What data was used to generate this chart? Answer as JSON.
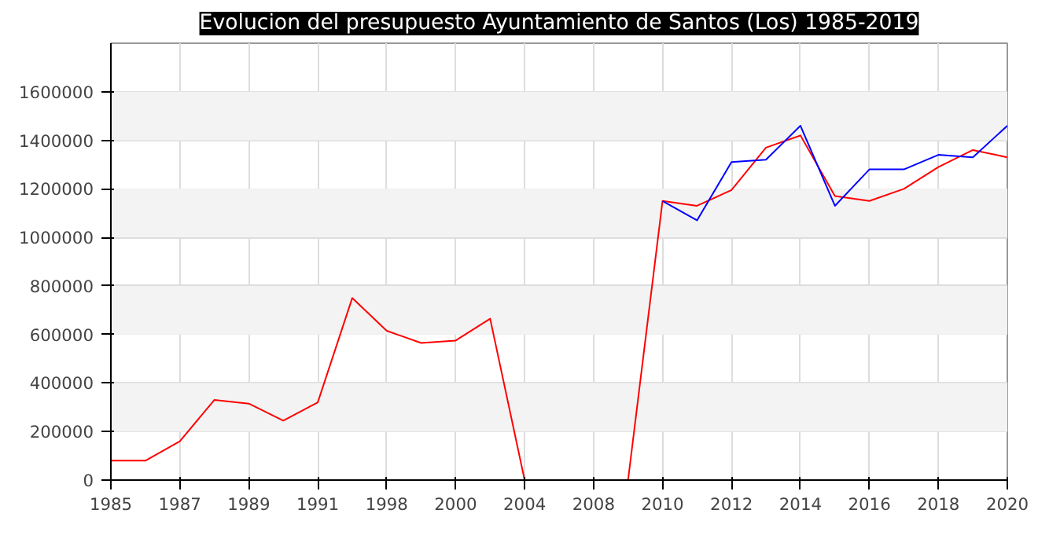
{
  "chart_data": {
    "type": "line",
    "title": "Evolucion del presupuesto Ayuntamiento de Santos (Los) 1985-2019",
    "categories": [
      "1985",
      null,
      "1987",
      null,
      "1989",
      null,
      "1991",
      null,
      "1998",
      null,
      "2000",
      null,
      "2004",
      null,
      "2008",
      null,
      "2010",
      null,
      "2012",
      null,
      "2014",
      null,
      "2016",
      null,
      "2018",
      null,
      "2020"
    ],
    "series": [
      {
        "color": "#ff0000",
        "values": [
          80000,
          80000,
          160000,
          330000,
          315000,
          245000,
          320000,
          750000,
          615000,
          565000,
          575000,
          665000,
          0,
          null,
          null,
          0,
          1150000,
          1130000,
          1195000,
          1370000,
          1420000,
          1170000,
          1150000,
          1200000,
          1290000,
          1360000,
          1330000
        ]
      },
      {
        "color": "#0000ff",
        "values": [
          null,
          null,
          null,
          null,
          null,
          null,
          null,
          null,
          null,
          null,
          null,
          null,
          null,
          null,
          null,
          null,
          1150000,
          1070000,
          1310000,
          1320000,
          1460000,
          1130000,
          1280000,
          1280000,
          1340000,
          1330000,
          1460000
        ]
      }
    ],
    "ylim": [
      0,
      1800000
    ],
    "yticks": [
      0,
      200000,
      400000,
      600000,
      800000,
      1000000,
      1200000,
      1400000,
      1600000
    ],
    "bands": [
      {
        "axis": "y",
        "from": 200000,
        "to": 400000,
        "color": "#f3f3f3"
      },
      {
        "axis": "y",
        "from": 600000,
        "to": 800000,
        "color": "#f3f3f3"
      },
      {
        "axis": "y",
        "from": 1000000,
        "to": 1200000,
        "color": "#f3f3f3"
      },
      {
        "axis": "y",
        "from": 1400000,
        "to": 1600000,
        "color": "#f3f3f3"
      }
    ],
    "grid": true,
    "marker": "none",
    "line_style": "solid"
  }
}
